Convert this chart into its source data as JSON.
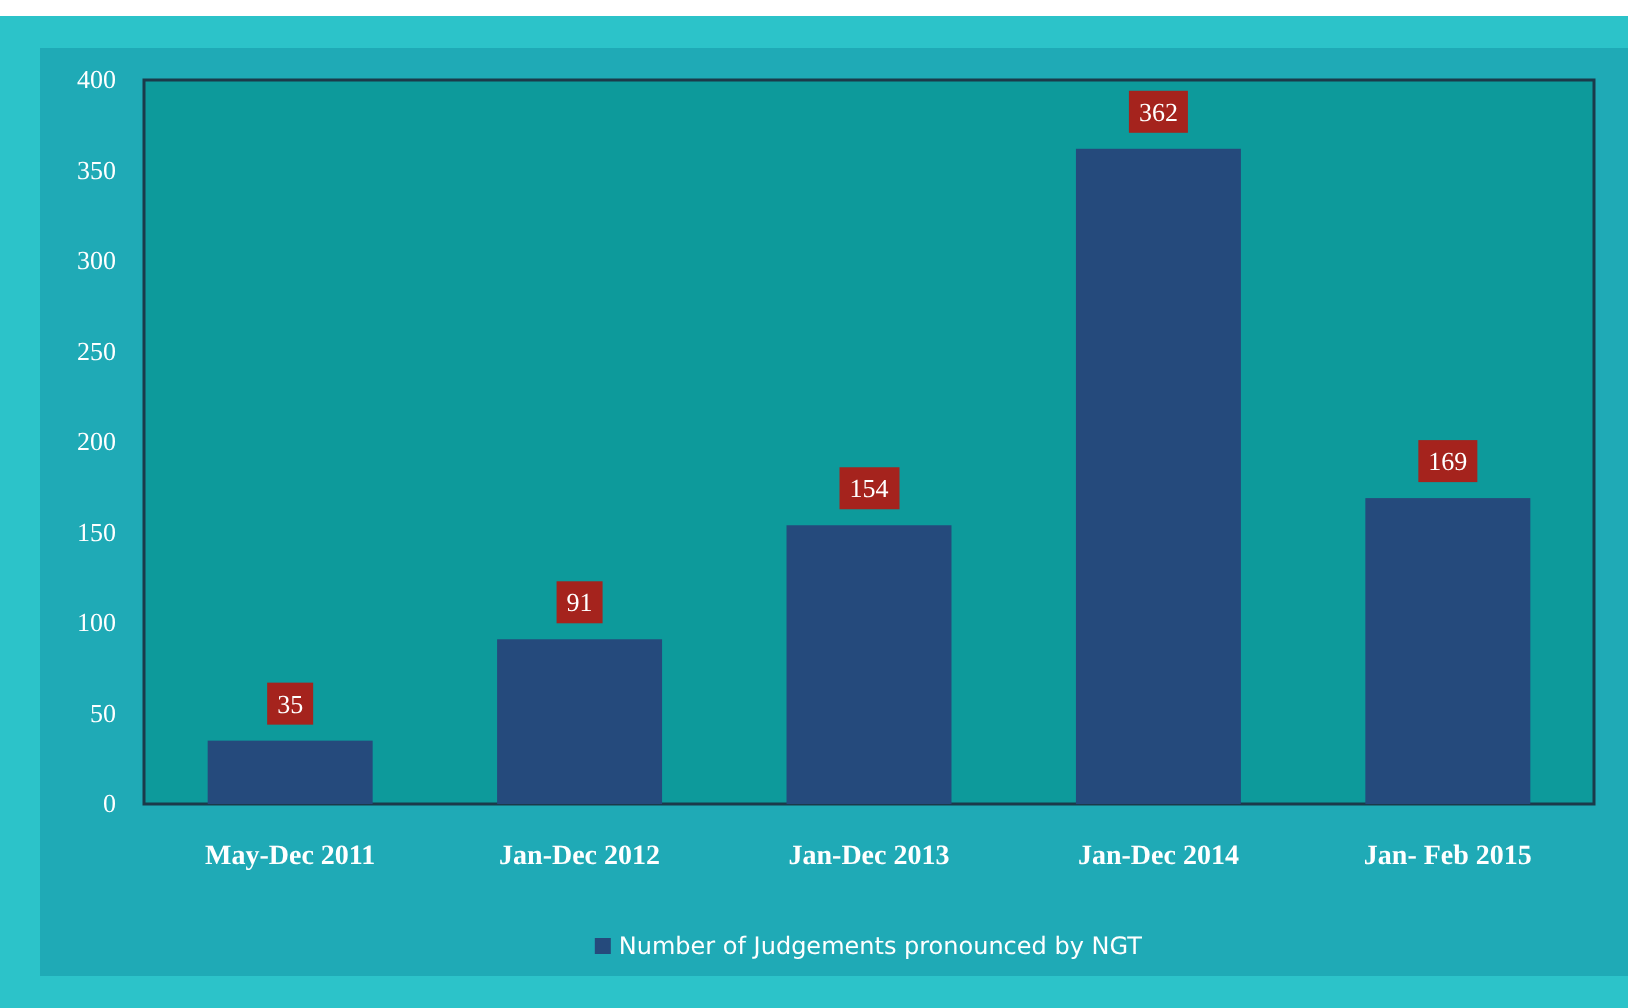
{
  "chart_data": {
    "type": "bar",
    "categories": [
      "May-Dec 2011",
      "Jan-Dec 2012",
      "Jan-Dec 2013",
      "Jan-Dec 2014",
      "Jan- Feb 2015"
    ],
    "series": [
      {
        "name": "Number of Judgements pronounced by NGT",
        "color": "#254a7c",
        "values": [
          35,
          91,
          154,
          362,
          169
        ]
      }
    ],
    "ylim": [
      0,
      400
    ],
    "yticks": [
      0,
      50,
      100,
      150,
      200,
      250,
      300,
      350,
      400
    ],
    "data_labels": true,
    "legend": "bottom"
  }
}
